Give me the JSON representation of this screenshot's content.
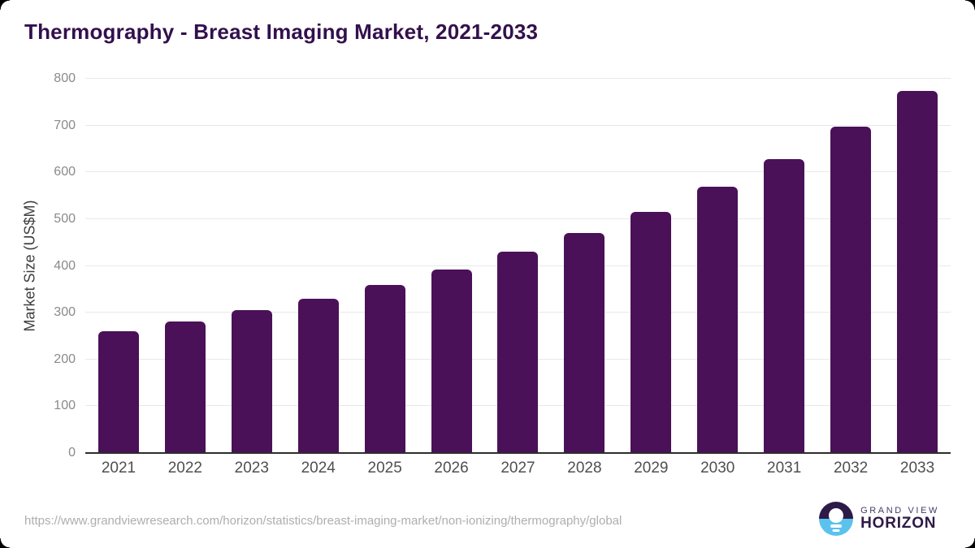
{
  "chart_data": {
    "type": "bar",
    "title": "Thermography - Breast Imaging Market, 2021-2033",
    "categories": [
      "2021",
      "2022",
      "2023",
      "2024",
      "2025",
      "2026",
      "2027",
      "2028",
      "2029",
      "2030",
      "2031",
      "2032",
      "2033"
    ],
    "values": [
      260,
      282,
      305,
      330,
      360,
      393,
      430,
      470,
      516,
      570,
      628,
      697,
      774
    ],
    "xlabel": "",
    "ylabel": "Market Size (US$M)",
    "ylim": [
      0,
      800
    ],
    "ytick_step": 100,
    "grid": true,
    "legend_position": "none",
    "bar_color": "#4a1158"
  },
  "footer": {
    "source_url": "https://www.grandviewresearch.com/horizon/statistics/breast-imaging-market/non-ionizing/thermography/global",
    "logo": {
      "line1": "GRAND VIEW",
      "line2": "HORIZON"
    }
  },
  "colors": {
    "title_text": "#33104d",
    "bar": "#4a1158",
    "gridline": "#e8e8e8",
    "axis_line": "#2d2d2d",
    "ytick_text": "#8a8a8a",
    "xtick_text": "#4f4f4f",
    "url_text": "#aeaeae",
    "logo_purple": "#2e1a47",
    "logo_blue": "#5ac2ec"
  }
}
